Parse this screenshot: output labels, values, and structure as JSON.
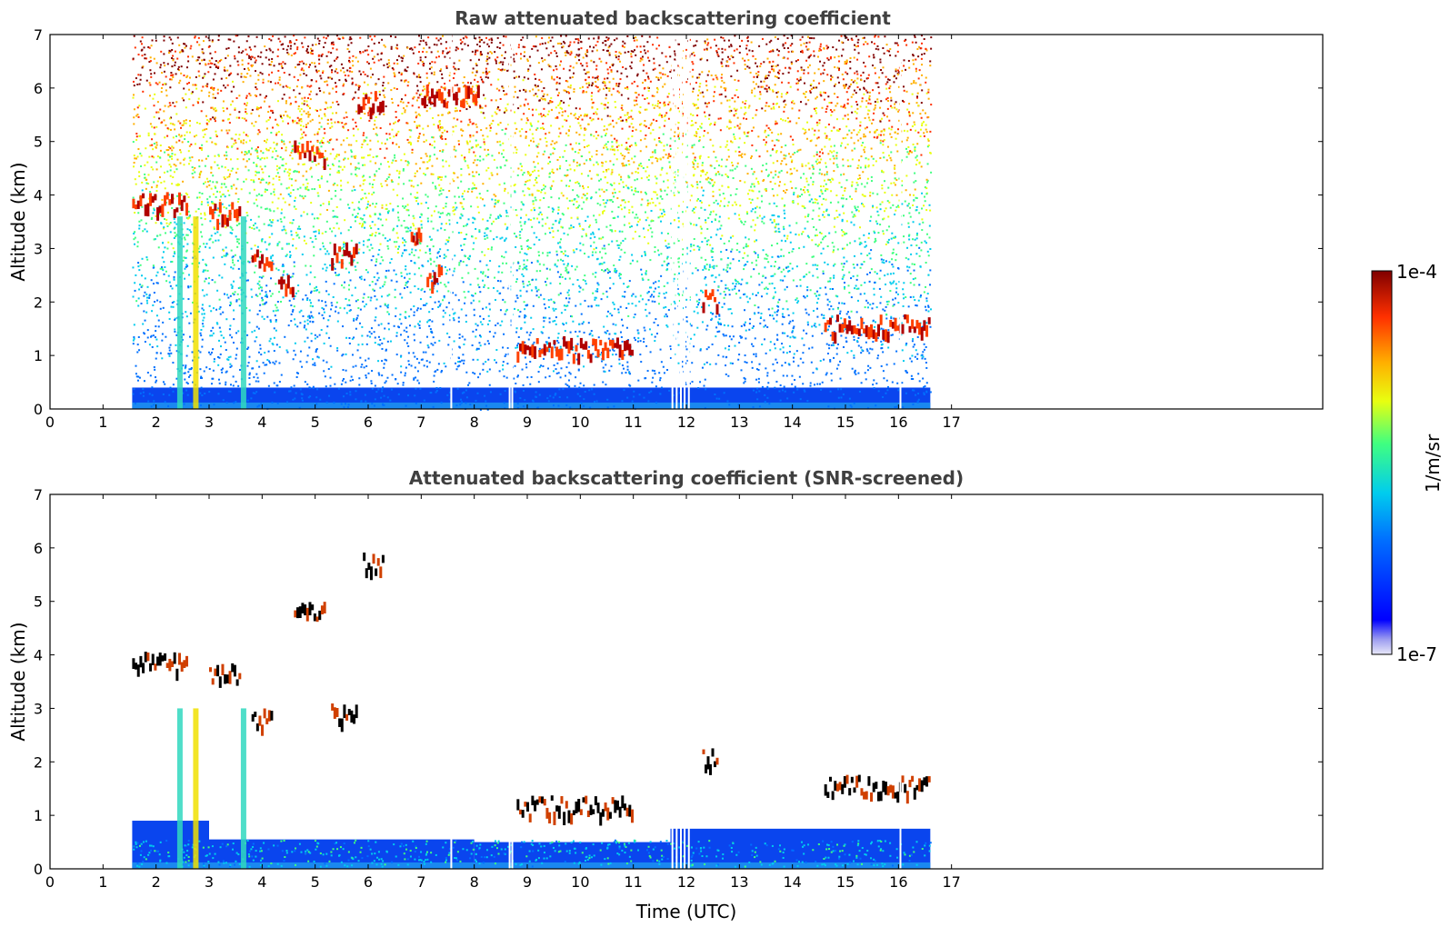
{
  "chart_data": [
    {
      "type": "heatmap",
      "title": "Raw attenuated backscattering coefficient",
      "xlabel": "",
      "ylabel": "Altitude (km)",
      "xlim": [
        0,
        24
      ],
      "ylim": [
        0,
        7
      ],
      "xticks": [
        0,
        1,
        2,
        3,
        4,
        5,
        6,
        7,
        8,
        9,
        10,
        11,
        12,
        13,
        14,
        15,
        16,
        17
      ],
      "yticks": [
        0,
        1,
        2,
        3,
        4,
        5,
        6,
        7
      ],
      "data_time_range": [
        1.55,
        16.6
      ],
      "data_gaps_utc": [
        7.55,
        8.65,
        8.7,
        11.72,
        11.8,
        11.88,
        11.95,
        12.03,
        16.02
      ],
      "colorbar": {
        "min": "1e-7",
        "max": "1e-4",
        "label": "1/m/sr",
        "scale": "log"
      },
      "features": [
        {
          "kind": "boundary_layer",
          "x": [
            1.55,
            16.6
          ],
          "alt_top": 0.4
        },
        {
          "kind": "cloud_layer",
          "x": [
            1.55,
            2.6
          ],
          "alt": 3.9
        },
        {
          "kind": "cloud_layer",
          "x": [
            3.0,
            3.6
          ],
          "alt": 3.7
        },
        {
          "kind": "cloud_layer",
          "x": [
            4.6,
            5.2
          ],
          "alt": 4.85
        },
        {
          "kind": "cloud_layer",
          "x": [
            5.8,
            6.3
          ],
          "alt": 5.78
        },
        {
          "kind": "cloud_layer",
          "x": [
            7.0,
            8.1
          ],
          "alt": 5.9
        },
        {
          "kind": "cloud_layer",
          "x": [
            3.8,
            4.2
          ],
          "alt": 2.85
        },
        {
          "kind": "cloud_layer",
          "x": [
            5.3,
            5.8
          ],
          "alt": 2.95
        },
        {
          "kind": "cloud_layer",
          "x": [
            4.3,
            4.6
          ],
          "alt": 2.4
        },
        {
          "kind": "cloud_layer",
          "x": [
            6.8,
            7.0
          ],
          "alt": 3.3
        },
        {
          "kind": "cloud_layer",
          "x": [
            7.1,
            7.4
          ],
          "alt": 2.55
        },
        {
          "kind": "cloud_layer",
          "x": [
            8.8,
            11.0
          ],
          "alt": 1.2
        },
        {
          "kind": "cloud_layer",
          "x": [
            12.3,
            12.6
          ],
          "alt": 2.1
        },
        {
          "kind": "cloud_layer",
          "x": [
            14.6,
            16.6
          ],
          "alt": 1.6
        }
      ]
    },
    {
      "type": "heatmap",
      "title": "Attenuated backscattering coefficient (SNR-screened)",
      "xlabel": "Time (UTC)",
      "ylabel": "Altitude (km)",
      "xlim": [
        0,
        24
      ],
      "ylim": [
        0,
        7
      ],
      "xticks": [
        0,
        1,
        2,
        3,
        4,
        5,
        6,
        7,
        8,
        9,
        10,
        11,
        12,
        13,
        14,
        15,
        16,
        17
      ],
      "yticks": [
        0,
        1,
        2,
        3,
        4,
        5,
        6,
        7
      ],
      "data_time_range": [
        1.55,
        16.6
      ],
      "colorbar": {
        "min": "1e-7",
        "max": "1e-4",
        "label": "1/m/sr",
        "scale": "log"
      },
      "features": [
        {
          "kind": "boundary_layer",
          "x": [
            1.55,
            3.0
          ],
          "alt_top": 0.9
        },
        {
          "kind": "boundary_layer",
          "x": [
            3.0,
            8.0
          ],
          "alt_top": 0.55
        },
        {
          "kind": "boundary_layer",
          "x": [
            8.0,
            11.7
          ],
          "alt_top": 0.5
        },
        {
          "kind": "boundary_layer",
          "x": [
            11.7,
            16.6
          ],
          "alt_top": 0.75
        },
        {
          "kind": "cloud_layer",
          "x": [
            1.55,
            2.6
          ],
          "alt": 3.9
        },
        {
          "kind": "cloud_layer",
          "x": [
            3.0,
            3.6
          ],
          "alt": 3.7
        },
        {
          "kind": "cloud_layer",
          "x": [
            4.6,
            5.2
          ],
          "alt": 4.85
        },
        {
          "kind": "cloud_layer",
          "x": [
            5.9,
            6.3
          ],
          "alt": 5.78
        },
        {
          "kind": "cloud_layer",
          "x": [
            3.8,
            4.2
          ],
          "alt": 2.85
        },
        {
          "kind": "cloud_layer",
          "x": [
            5.3,
            5.8
          ],
          "alt": 2.95
        },
        {
          "kind": "cloud_layer",
          "x": [
            8.8,
            11.0
          ],
          "alt": 1.2
        },
        {
          "kind": "cloud_layer",
          "x": [
            12.3,
            12.6
          ],
          "alt": 2.1
        },
        {
          "kind": "cloud_layer",
          "x": [
            14.6,
            16.6
          ],
          "alt": 1.6
        }
      ]
    }
  ]
}
